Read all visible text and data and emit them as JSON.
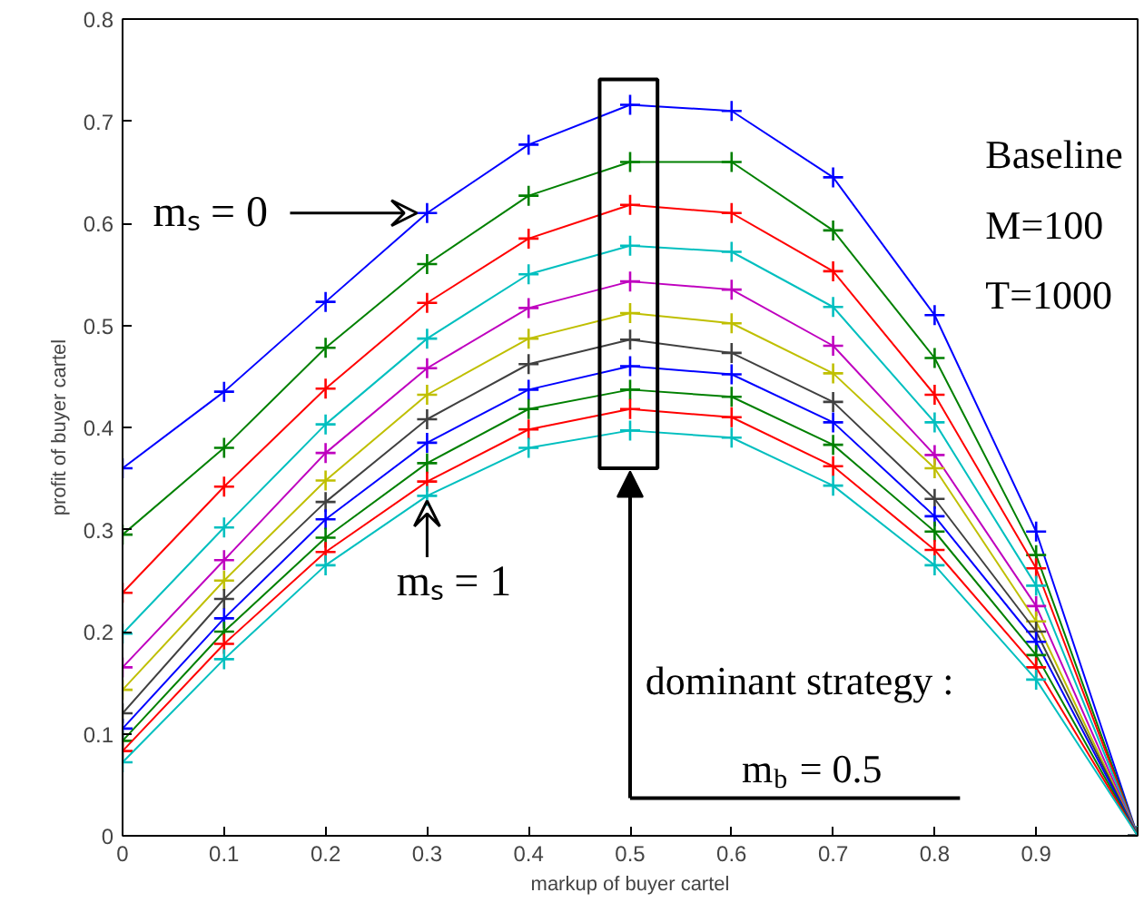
{
  "chart_data": {
    "type": "line",
    "xlabel": "markup of buyer cartel",
    "ylabel": "profit of buyer cartel",
    "x": [
      0,
      0.1,
      0.2,
      0.3,
      0.4,
      0.5,
      0.6,
      0.7,
      0.8,
      0.9,
      1.0
    ],
    "xlim": [
      0,
      1
    ],
    "xticks": [
      0,
      0.1,
      0.2,
      0.3,
      0.4,
      0.5,
      0.6,
      0.7,
      0.8,
      0.9,
      {
        "value": 1,
        "label": null
      }
    ],
    "ylim": [
      0,
      0.8
    ],
    "yticks": [
      0,
      0.1,
      0.2,
      0.3,
      0.4,
      0.5,
      0.6,
      0.7,
      0.8
    ],
    "grid": false,
    "marker": "cross",
    "line_style": "solid",
    "series": [
      {
        "color": "#0000ff",
        "values": [
          0.36,
          0.435,
          0.523,
          0.61,
          0.677,
          0.716,
          0.71,
          0.645,
          0.51,
          0.298,
          0
        ]
      },
      {
        "color": "#008000",
        "values": [
          0.295,
          0.38,
          0.478,
          0.56,
          0.627,
          0.66,
          0.66,
          0.593,
          0.468,
          0.275,
          0
        ]
      },
      {
        "color": "#ff0000",
        "values": [
          0.238,
          0.342,
          0.438,
          0.522,
          0.585,
          0.618,
          0.61,
          0.553,
          0.432,
          0.262,
          0
        ]
      },
      {
        "color": "#00bfbf",
        "values": [
          0.198,
          0.302,
          0.403,
          0.487,
          0.55,
          0.578,
          0.572,
          0.518,
          0.405,
          0.245,
          0
        ]
      },
      {
        "color": "#bf00bf",
        "values": [
          0.165,
          0.27,
          0.375,
          0.458,
          0.517,
          0.543,
          0.535,
          0.48,
          0.373,
          0.225,
          0
        ]
      },
      {
        "color": "#bfbf00",
        "values": [
          0.143,
          0.25,
          0.348,
          0.432,
          0.487,
          0.512,
          0.502,
          0.453,
          0.36,
          0.21,
          0
        ]
      },
      {
        "color": "#404040",
        "values": [
          0.12,
          0.232,
          0.327,
          0.408,
          0.462,
          0.486,
          0.473,
          0.425,
          0.33,
          0.2,
          0
        ]
      },
      {
        "color": "#0000ff",
        "values": [
          0.105,
          0.213,
          0.31,
          0.385,
          0.437,
          0.46,
          0.452,
          0.405,
          0.313,
          0.19,
          0
        ]
      },
      {
        "color": "#008000",
        "values": [
          0.093,
          0.2,
          0.292,
          0.365,
          0.418,
          0.437,
          0.43,
          0.383,
          0.298,
          0.177,
          0
        ]
      },
      {
        "color": "#ff0000",
        "values": [
          0.083,
          0.188,
          0.278,
          0.347,
          0.398,
          0.418,
          0.41,
          0.362,
          0.28,
          0.165,
          0
        ]
      },
      {
        "color": "#00bfbf",
        "values": [
          0.072,
          0.173,
          0.265,
          0.333,
          0.38,
          0.397,
          0.39,
          0.343,
          0.265,
          0.153,
          0
        ]
      }
    ],
    "annotations": [
      {
        "text": "mₛ = 0",
        "x": 0.3,
        "y": 0.61
      },
      {
        "text": "mₛ = 1",
        "x": 0.3,
        "y": 0.333
      },
      "dominant strategy :",
      "m$_{b}$ = 0.5",
      "Baseline",
      "M=100",
      "T=1000"
    ]
  }
}
